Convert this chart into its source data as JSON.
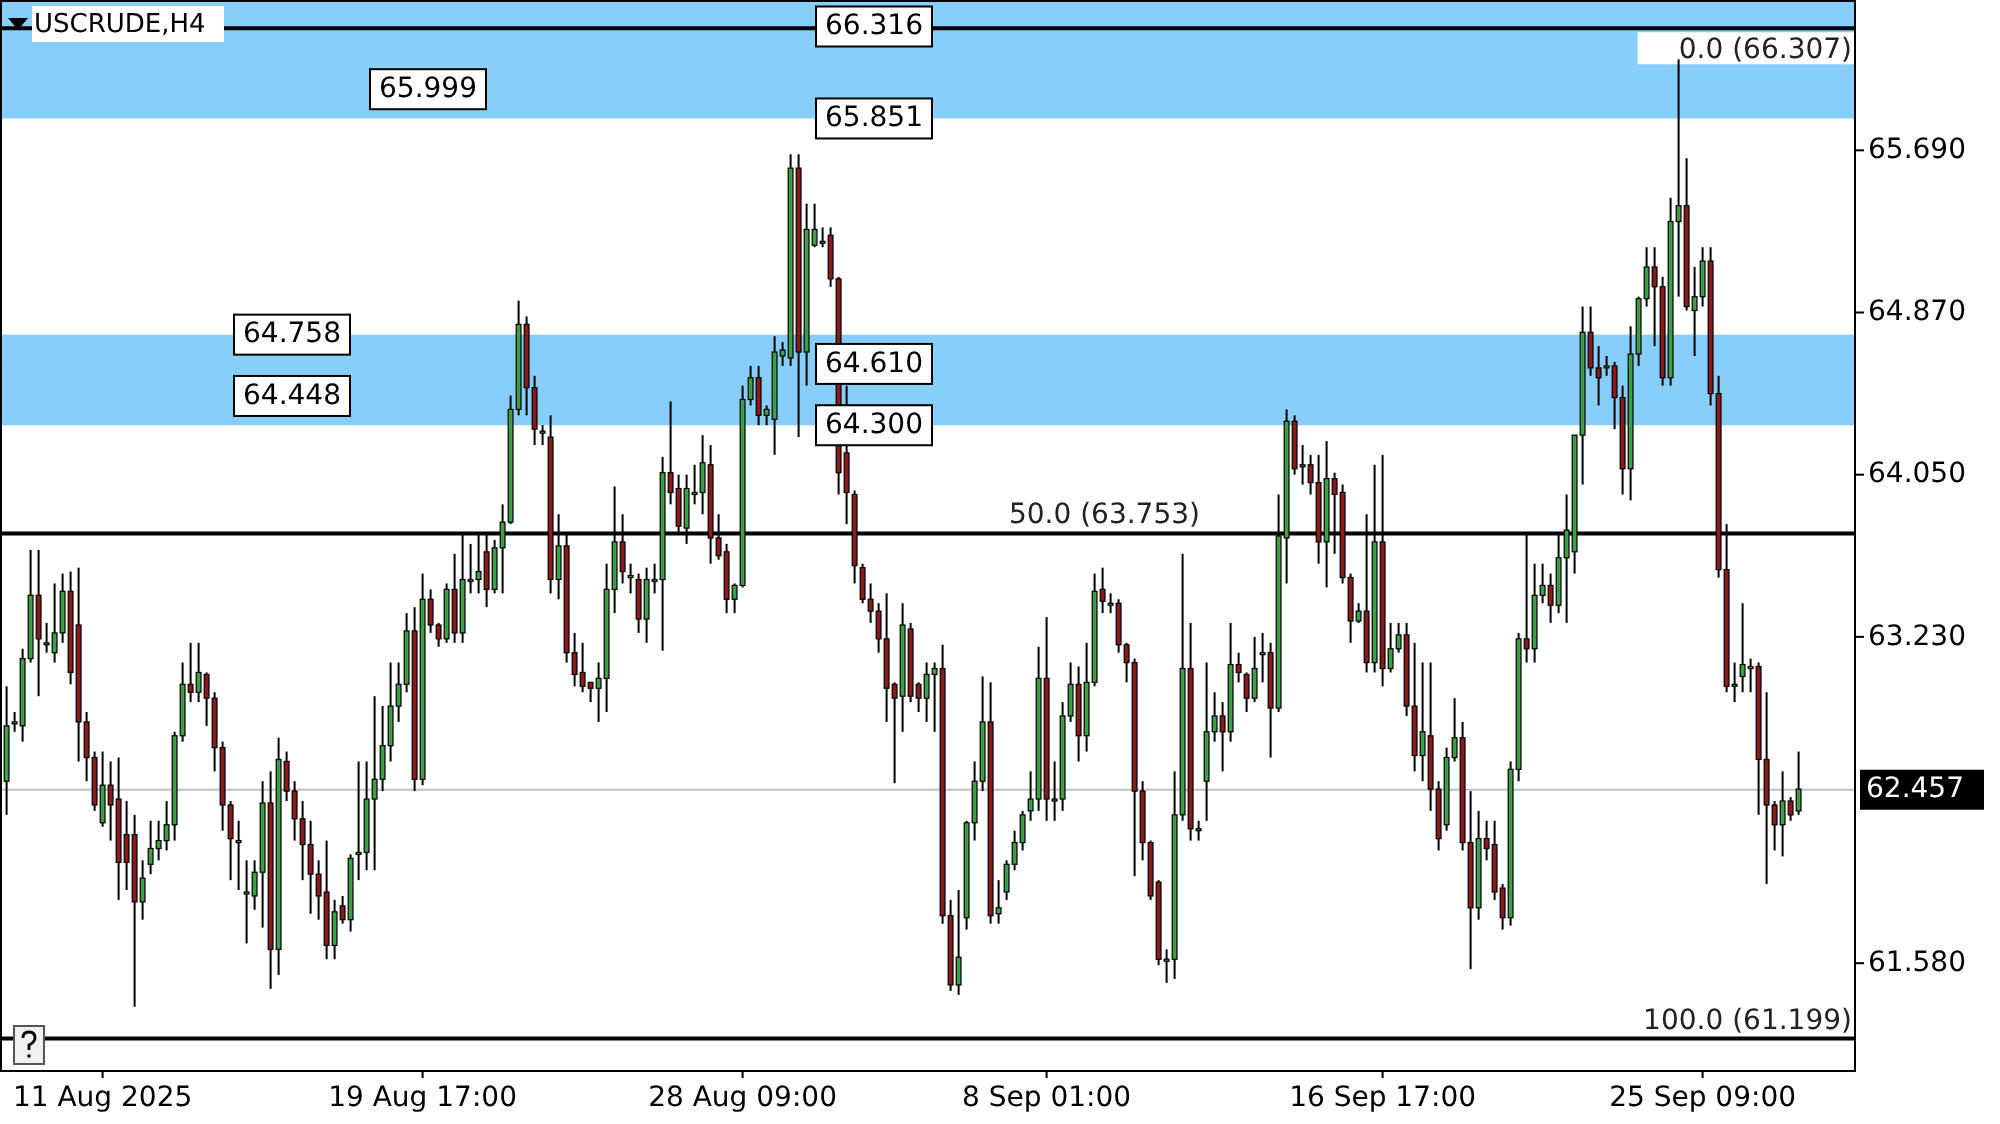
{
  "chart_data": {
    "type": "candlestick",
    "title": "USCRUDE,H4",
    "categories": [
      null,
      null,
      null,
      null,
      null,
      null,
      null,
      null,
      null,
      null,
      null,
      null,
      "11 Aug 2025",
      null,
      null,
      null,
      null,
      null,
      null,
      null,
      null,
      null,
      null,
      null,
      null,
      null,
      null,
      null,
      null,
      null,
      null,
      null,
      null,
      null,
      null,
      null,
      null,
      null,
      null,
      null,
      null,
      null,
      null,
      null,
      null,
      null,
      null,
      null,
      null,
      null,
      null,
      null,
      "19 Aug 17:00",
      null,
      null,
      null,
      null,
      null,
      null,
      null,
      null,
      null,
      null,
      null,
      null,
      null,
      null,
      null,
      null,
      null,
      null,
      null,
      null,
      null,
      null,
      null,
      null,
      null,
      null,
      null,
      null,
      null,
      null,
      null,
      null,
      null,
      null,
      null,
      null,
      null,
      null,
      null,
      "28 Aug 09:00",
      null,
      null,
      null,
      null,
      null,
      null,
      null,
      null,
      null,
      null,
      null,
      null,
      null,
      null,
      null,
      null,
      null,
      null,
      null,
      null,
      null,
      null,
      null,
      null,
      null,
      null,
      null,
      null,
      null,
      null,
      null,
      null,
      null,
      null,
      null,
      null,
      null,
      "8 Sep 01:00",
      null,
      null,
      null,
      null,
      null,
      null,
      null,
      null,
      null,
      null,
      null,
      null,
      null,
      null,
      null,
      null,
      null,
      null,
      null,
      null,
      null,
      null,
      null,
      null,
      null,
      null,
      null,
      null,
      null,
      null,
      null,
      null,
      null,
      null,
      null,
      null,
      null,
      null,
      null,
      null,
      null,
      "16 Sep 17:00",
      null,
      null,
      null,
      null,
      null,
      null,
      null,
      null,
      null,
      null,
      null,
      null,
      null,
      null,
      null,
      null,
      null,
      null,
      null,
      null,
      null,
      null,
      null,
      null,
      null,
      null,
      null,
      null,
      null,
      null,
      null,
      null,
      null,
      null,
      null,
      null,
      null,
      null,
      null,
      "25 Sep 09:00",
      null,
      null,
      null,
      null,
      null,
      null,
      null,
      null,
      null,
      null,
      null,
      null
    ],
    "ohlc": [
      [
        62.5,
        62.98,
        62.33,
        62.78
      ],
      [
        62.8,
        62.85,
        62.75,
        62.8
      ],
      [
        62.78,
        63.17,
        62.7,
        63.12
      ],
      [
        63.12,
        63.67,
        63.1,
        63.44
      ],
      [
        63.44,
        63.67,
        62.93,
        63.22
      ],
      [
        63.2,
        63.3,
        63.15,
        63.2
      ],
      [
        63.15,
        63.5,
        63.1,
        63.25
      ],
      [
        63.25,
        63.55,
        63.2,
        63.46
      ],
      [
        63.46,
        63.56,
        62.99,
        63.05
      ],
      [
        63.29,
        63.58,
        62.6,
        62.8
      ],
      [
        62.8,
        62.85,
        62.5,
        62.62
      ],
      [
        62.62,
        62.65,
        62.35,
        62.38
      ],
      [
        62.29,
        62.65,
        62.27,
        62.48
      ],
      [
        62.48,
        62.6,
        62.2,
        62.38
      ],
      [
        62.41,
        62.62,
        61.9,
        62.09
      ],
      [
        62.23,
        62.4,
        61.95,
        62.09
      ],
      [
        62.23,
        62.33,
        61.36,
        61.89
      ],
      [
        61.89,
        62.1,
        61.8,
        62.01
      ],
      [
        62.08,
        62.3,
        62.03,
        62.16
      ],
      [
        62.16,
        62.3,
        62.1,
        62.2
      ],
      [
        62.2,
        62.4,
        62.15,
        62.28
      ],
      [
        62.28,
        62.75,
        62.2,
        62.73
      ],
      [
        62.73,
        63.1,
        62.7,
        62.99
      ],
      [
        62.99,
        63.2,
        62.9,
        62.95
      ],
      [
        62.95,
        63.2,
        62.9,
        63.05
      ],
      [
        63.04,
        63.05,
        62.78,
        62.92
      ],
      [
        62.92,
        62.95,
        62.55,
        62.67
      ],
      [
        62.67,
        62.7,
        62.25,
        62.38
      ],
      [
        62.38,
        62.4,
        62.0,
        62.21
      ],
      [
        62.2,
        62.3,
        61.95,
        62.2
      ],
      [
        61.94,
        62.1,
        61.68,
        61.94
      ],
      [
        61.92,
        62.1,
        61.85,
        62.04
      ],
      [
        62.04,
        62.5,
        61.76,
        62.39
      ],
      [
        62.39,
        62.55,
        61.45,
        61.65
      ],
      [
        61.65,
        62.72,
        61.52,
        62.61
      ],
      [
        62.6,
        62.65,
        62.4,
        62.45
      ],
      [
        62.45,
        62.5,
        62.2,
        62.31
      ],
      [
        62.31,
        62.4,
        62.0,
        62.18
      ],
      [
        62.18,
        62.3,
        61.83,
        62.03
      ],
      [
        62.03,
        62.1,
        61.8,
        61.92
      ],
      [
        61.94,
        62.2,
        61.6,
        61.67
      ],
      [
        61.67,
        61.9,
        61.6,
        61.84
      ],
      [
        61.87,
        61.92,
        61.78,
        61.8
      ],
      [
        61.8,
        62.13,
        61.74,
        62.11
      ],
      [
        62.14,
        62.6,
        62.0,
        62.14
      ],
      [
        62.14,
        62.6,
        62.05,
        62.41
      ],
      [
        62.41,
        62.93,
        62.05,
        62.51
      ],
      [
        62.51,
        62.88,
        62.45,
        62.68
      ],
      [
        62.68,
        63.1,
        62.6,
        62.88
      ],
      [
        62.88,
        63.1,
        62.8,
        62.99
      ],
      [
        62.99,
        63.35,
        62.95,
        63.26
      ],
      [
        63.26,
        63.38,
        62.45,
        62.51
      ],
      [
        62.51,
        63.55,
        62.48,
        63.42
      ],
      [
        63.42,
        63.47,
        63.25,
        63.29
      ],
      [
        63.29,
        63.3,
        63.18,
        63.22
      ],
      [
        63.22,
        63.5,
        63.2,
        63.47
      ],
      [
        63.47,
        63.65,
        63.2,
        63.25
      ],
      [
        63.25,
        63.75,
        63.2,
        63.52
      ],
      [
        63.52,
        63.7,
        63.45,
        63.52
      ],
      [
        63.52,
        63.75,
        63.45,
        63.56
      ],
      [
        63.66,
        63.75,
        63.38,
        63.47
      ],
      [
        63.47,
        63.72,
        63.45,
        63.68
      ],
      [
        63.68,
        63.9,
        63.45,
        63.81
      ],
      [
        63.81,
        64.45,
        63.8,
        64.38
      ],
      [
        64.38,
        64.93,
        64.35,
        64.81
      ],
      [
        64.81,
        64.85,
        64.35,
        64.49
      ],
      [
        64.49,
        64.55,
        64.2,
        64.28
      ],
      [
        64.27,
        64.3,
        64.2,
        64.27
      ],
      [
        64.24,
        64.35,
        63.45,
        63.52
      ],
      [
        63.52,
        63.85,
        63.42,
        63.69
      ],
      [
        63.69,
        63.75,
        63.1,
        63.15
      ],
      [
        63.15,
        63.25,
        62.98,
        63.04
      ],
      [
        63.05,
        63.2,
        62.95,
        62.98
      ],
      [
        63.0,
        63.0,
        62.9,
        62.97
      ],
      [
        62.97,
        63.1,
        62.8,
        63.02
      ],
      [
        63.02,
        63.6,
        62.85,
        63.47
      ],
      [
        63.47,
        63.99,
        63.35,
        63.71
      ],
      [
        63.71,
        63.85,
        63.5,
        63.56
      ],
      [
        63.54,
        63.6,
        63.45,
        63.54
      ],
      [
        63.52,
        63.55,
        63.25,
        63.32
      ],
      [
        63.32,
        63.58,
        63.2,
        63.52
      ],
      [
        63.52,
        63.6,
        63.45,
        63.52
      ],
      [
        63.52,
        64.14,
        63.16,
        64.06
      ],
      [
        64.06,
        64.42,
        63.9,
        63.96
      ],
      [
        63.98,
        64.05,
        63.75,
        63.79
      ],
      [
        63.78,
        64.05,
        63.7,
        63.98
      ],
      [
        63.96,
        64.1,
        63.9,
        63.96
      ],
      [
        63.96,
        64.25,
        63.85,
        64.11
      ],
      [
        64.1,
        64.2,
        63.6,
        63.73
      ],
      [
        63.73,
        63.85,
        63.62,
        63.64
      ],
      [
        63.66,
        63.7,
        63.35,
        63.42
      ],
      [
        63.42,
        63.5,
        63.35,
        63.49
      ],
      [
        63.49,
        64.5,
        63.48,
        64.43
      ],
      [
        64.43,
        64.6,
        64.4,
        64.54
      ],
      [
        64.54,
        64.6,
        64.3,
        64.35
      ],
      [
        64.35,
        64.4,
        64.3,
        64.38
      ],
      [
        64.33,
        64.75,
        64.15,
        64.67
      ],
      [
        64.65,
        64.72,
        64.6,
        64.68
      ],
      [
        64.64,
        65.67,
        64.6,
        65.6
      ],
      [
        65.6,
        65.67,
        64.24,
        64.67
      ],
      [
        64.67,
        65.42,
        64.5,
        65.29
      ],
      [
        65.21,
        65.42,
        65.2,
        65.29
      ],
      [
        65.23,
        65.3,
        65.2,
        65.23
      ],
      [
        65.26,
        65.3,
        65.0,
        65.04
      ],
      [
        65.04,
        65.05,
        63.95,
        64.06
      ],
      [
        64.16,
        64.5,
        63.8,
        63.96
      ],
      [
        63.95,
        63.97,
        63.5,
        63.59
      ],
      [
        63.58,
        63.6,
        63.4,
        63.42
      ],
      [
        63.42,
        63.5,
        63.3,
        63.36
      ],
      [
        63.36,
        63.4,
        63.15,
        63.22
      ],
      [
        63.22,
        63.45,
        62.8,
        62.97
      ],
      [
        62.99,
        63.0,
        62.49,
        62.92
      ],
      [
        62.93,
        63.4,
        62.75,
        63.29
      ],
      [
        63.27,
        63.3,
        62.9,
        62.93
      ],
      [
        62.99,
        63.0,
        62.85,
        62.92
      ],
      [
        62.92,
        63.1,
        62.8,
        63.04
      ],
      [
        63.04,
        63.1,
        62.75,
        63.07
      ],
      [
        63.07,
        63.19,
        61.78,
        61.82
      ],
      [
        61.82,
        61.9,
        61.44,
        61.47
      ],
      [
        61.47,
        61.95,
        61.42,
        61.61
      ],
      [
        61.81,
        62.3,
        61.75,
        62.29
      ],
      [
        62.29,
        62.6,
        62.2,
        62.5
      ],
      [
        62.5,
        63.03,
        62.45,
        62.8
      ],
      [
        62.8,
        63.0,
        61.78,
        61.82
      ],
      [
        61.83,
        62.0,
        61.78,
        61.86
      ],
      [
        61.94,
        62.1,
        61.9,
        62.08
      ],
      [
        62.08,
        62.25,
        62.05,
        62.19
      ],
      [
        62.19,
        62.35,
        62.15,
        62.33
      ],
      [
        62.35,
        62.55,
        62.3,
        62.41
      ],
      [
        62.41,
        63.18,
        62.35,
        63.02
      ],
      [
        63.02,
        63.33,
        62.3,
        62.41
      ],
      [
        62.41,
        62.6,
        62.3,
        62.41
      ],
      [
        62.41,
        62.9,
        62.35,
        62.83
      ],
      [
        62.83,
        63.1,
        62.8,
        62.99
      ],
      [
        62.99,
        63.08,
        62.6,
        62.73
      ],
      [
        62.73,
        63.2,
        62.65,
        63.0
      ],
      [
        63.0,
        63.55,
        62.98,
        63.46
      ],
      [
        63.47,
        63.58,
        63.35,
        63.41
      ],
      [
        63.4,
        63.45,
        63.35,
        63.4
      ],
      [
        63.4,
        63.42,
        63.15,
        63.19
      ],
      [
        63.19,
        63.2,
        63.0,
        63.1
      ],
      [
        63.1,
        63.12,
        62.02,
        62.45
      ],
      [
        62.45,
        62.5,
        62.1,
        62.19
      ],
      [
        62.19,
        62.2,
        61.9,
        61.92
      ],
      [
        61.99,
        62.0,
        61.57,
        61.6
      ],
      [
        61.6,
        61.65,
        61.48,
        61.6
      ],
      [
        61.6,
        62.55,
        61.5,
        62.33
      ],
      [
        62.33,
        63.65,
        62.3,
        63.07
      ],
      [
        63.07,
        63.3,
        62.2,
        62.26
      ],
      [
        62.26,
        62.3,
        62.2,
        62.26
      ],
      [
        62.5,
        63.1,
        62.3,
        62.75
      ],
      [
        62.75,
        62.95,
        62.7,
        62.83
      ],
      [
        62.83,
        62.9,
        62.55,
        62.75
      ],
      [
        62.75,
        63.3,
        62.7,
        63.09
      ],
      [
        63.09,
        63.15,
        63.0,
        63.05
      ],
      [
        63.04,
        63.05,
        62.85,
        62.92
      ],
      [
        62.92,
        63.23,
        62.9,
        63.07
      ],
      [
        63.15,
        63.25,
        63.0,
        63.15
      ],
      [
        63.15,
        63.2,
        62.62,
        62.87
      ],
      [
        62.87,
        63.95,
        62.85,
        63.74
      ],
      [
        63.73,
        64.38,
        63.5,
        64.32
      ],
      [
        64.32,
        64.35,
        64.05,
        64.08
      ],
      [
        64.1,
        64.2,
        64.0,
        64.1
      ],
      [
        64.1,
        64.15,
        63.95,
        64.01
      ],
      [
        64.01,
        64.15,
        63.6,
        63.71
      ],
      [
        63.71,
        64.22,
        63.48,
        64.03
      ],
      [
        64.03,
        64.06,
        63.65,
        63.95
      ],
      [
        63.96,
        64.0,
        63.5,
        63.53
      ],
      [
        63.53,
        63.55,
        63.2,
        63.31
      ],
      [
        63.31,
        63.4,
        63.3,
        63.36
      ],
      [
        63.36,
        63.85,
        63.05,
        63.1
      ],
      [
        63.1,
        64.1,
        63.05,
        63.71
      ],
      [
        63.71,
        64.15,
        62.98,
        63.07
      ],
      [
        63.07,
        63.3,
        63.05,
        63.17
      ],
      [
        63.17,
        63.3,
        63.15,
        63.24
      ],
      [
        63.24,
        63.3,
        62.83,
        62.88
      ],
      [
        62.88,
        63.2,
        62.55,
        62.63
      ],
      [
        62.63,
        63.1,
        62.5,
        62.75
      ],
      [
        62.73,
        63.1,
        62.35,
        62.46
      ],
      [
        62.46,
        62.5,
        62.15,
        62.21
      ],
      [
        62.28,
        62.67,
        62.25,
        62.62
      ],
      [
        62.62,
        62.92,
        62.6,
        62.72
      ],
      [
        62.72,
        62.8,
        62.15,
        62.19
      ],
      [
        62.19,
        62.45,
        61.55,
        61.86
      ],
      [
        61.86,
        62.35,
        61.8,
        62.21
      ],
      [
        62.21,
        62.3,
        62.1,
        62.16
      ],
      [
        62.18,
        62.3,
        61.9,
        61.94
      ],
      [
        61.96,
        61.98,
        61.75,
        61.81
      ],
      [
        61.81,
        62.6,
        61.77,
        62.56
      ],
      [
        62.56,
        63.25,
        62.5,
        63.22
      ],
      [
        63.22,
        63.75,
        63.1,
        63.17
      ],
      [
        63.17,
        63.6,
        63.1,
        63.44
      ],
      [
        63.44,
        63.6,
        63.4,
        63.49
      ],
      [
        63.49,
        63.55,
        63.3,
        63.39
      ],
      [
        63.39,
        63.75,
        63.35,
        63.63
      ],
      [
        63.63,
        63.95,
        63.3,
        63.77
      ],
      [
        63.66,
        64.25,
        63.55,
        64.25
      ],
      [
        64.25,
        64.9,
        64.0,
        64.77
      ],
      [
        64.77,
        64.9,
        64.55,
        64.59
      ],
      [
        64.59,
        64.7,
        64.4,
        64.54
      ],
      [
        64.6,
        64.65,
        64.55,
        64.6
      ],
      [
        64.6,
        64.62,
        64.28,
        64.44
      ],
      [
        64.44,
        64.5,
        63.95,
        64.08
      ],
      [
        64.08,
        64.8,
        63.92,
        64.66
      ],
      [
        64.66,
        64.95,
        64.6,
        64.94
      ],
      [
        64.94,
        65.2,
        64.9,
        65.1
      ],
      [
        65.1,
        65.2,
        64.7,
        65.0
      ],
      [
        65.0,
        65.05,
        64.5,
        64.54
      ],
      [
        64.54,
        65.45,
        64.5,
        65.33
      ],
      [
        65.33,
        66.15,
        64.95,
        65.41
      ],
      [
        65.41,
        65.65,
        64.88,
        64.9
      ],
      [
        64.88,
        65.1,
        64.65,
        64.95
      ],
      [
        64.95,
        65.2,
        64.9,
        65.13
      ],
      [
        65.13,
        65.2,
        64.4,
        64.46
      ],
      [
        64.46,
        64.55,
        63.53,
        63.57
      ],
      [
        63.57,
        63.8,
        62.95,
        62.98
      ],
      [
        62.99,
        63.1,
        62.9,
        62.99
      ],
      [
        63.03,
        63.4,
        62.95,
        63.09
      ],
      [
        63.08,
        63.12,
        62.95,
        63.08
      ],
      [
        63.08,
        63.1,
        62.33,
        62.61
      ],
      [
        62.61,
        62.95,
        61.98,
        62.38
      ],
      [
        62.38,
        62.4,
        62.15,
        62.28
      ],
      [
        62.28,
        62.55,
        62.12,
        62.4
      ],
      [
        62.4,
        62.42,
        62.3,
        62.33
      ],
      [
        62.35,
        62.65,
        62.33,
        62.46
      ]
    ],
    "ylim": [
      61.04,
      66.45
    ],
    "yticks": [
      {
        "value": 61.58,
        "label": "61.580"
      },
      {
        "value": 63.23,
        "label": "63.230"
      },
      {
        "value": 64.05,
        "label": "64.050"
      },
      {
        "value": 64.87,
        "label": "64.870"
      },
      {
        "value": 65.69,
        "label": "65.690"
      }
    ],
    "ref_lines": [
      {
        "axis": "y",
        "value": 62.457,
        "label": "62.457",
        "color": "#c0c0c0"
      },
      {
        "axis": "y",
        "value": 66.307,
        "label": "0.0 (66.307)",
        "color": "#000000"
      },
      {
        "axis": "y",
        "value": 63.753,
        "label": "50.0 (63.753)",
        "color": "#000000"
      },
      {
        "axis": "y",
        "value": 61.199,
        "label": "100.0 (61.199)",
        "color": "#000000"
      }
    ],
    "bands": [
      {
        "axis": "y",
        "from": 65.999,
        "to": 66.45,
        "color": "#87cefa"
      },
      {
        "axis": "y",
        "from": 65.851,
        "to": 66.316,
        "color": "#87cefa"
      },
      {
        "axis": "y",
        "from": 64.448,
        "to": 64.758,
        "color": "#87cefa"
      },
      {
        "axis": "y",
        "from": 64.3,
        "to": 64.61,
        "color": "#87cefa"
      }
    ],
    "annotations": [
      {
        "text": "65.999",
        "y": 65.999
      },
      {
        "text": "64.758",
        "y": 64.758
      },
      {
        "text": "64.448",
        "y": 64.448
      },
      {
        "text": "66.316",
        "y": 66.316
      },
      {
        "text": "65.851",
        "y": 65.851
      },
      {
        "text": "64.610",
        "y": 64.61
      },
      {
        "text": "64.300",
        "y": 64.3
      }
    ],
    "grid": false
  }
}
